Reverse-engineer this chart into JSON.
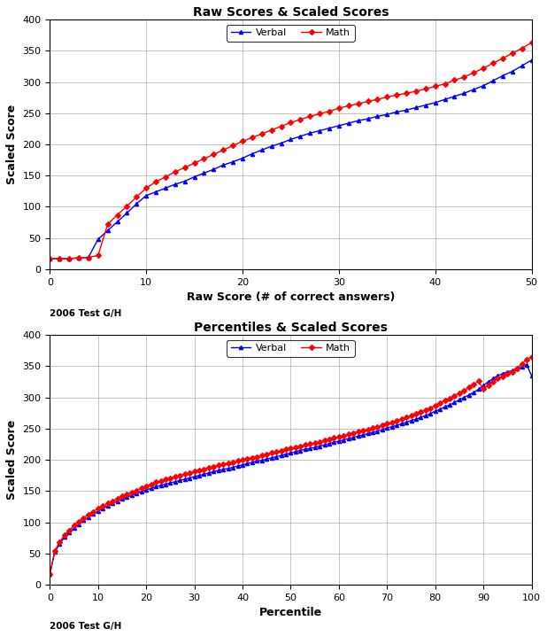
{
  "title1": "Raw Scores & Scaled Scores",
  "title2": "Percentiles & Scaled Scores",
  "xlabel1": "Raw Score (# of correct answers)",
  "xlabel2": "Percentile",
  "ylabel": "Scaled Score",
  "annotation": "2006 Test G/H",
  "verbal_color": "#0000FF",
  "math_color": "#FF0000",
  "verbal_label": "Verbal",
  "math_label": "Math",
  "raw_verbal_x": [
    0,
    1,
    2,
    3,
    4,
    5,
    6,
    7,
    8,
    9,
    10,
    11,
    12,
    13,
    14,
    15,
    16,
    17,
    18,
    19,
    20,
    21,
    22,
    23,
    24,
    25,
    26,
    27,
    28,
    29,
    30,
    31,
    32,
    33,
    34,
    35,
    36,
    37,
    38,
    39,
    40,
    41,
    42,
    43,
    44,
    45,
    46,
    47,
    48,
    49,
    50
  ],
  "raw_verbal_y": [
    17,
    17,
    17,
    18,
    19,
    48,
    62,
    76,
    90,
    105,
    118,
    124,
    130,
    136,
    141,
    148,
    154,
    160,
    167,
    172,
    178,
    185,
    191,
    197,
    202,
    208,
    213,
    218,
    222,
    226,
    230,
    234,
    238,
    241,
    245,
    248,
    252,
    255,
    259,
    263,
    267,
    272,
    277,
    282,
    288,
    294,
    302,
    310,
    317,
    326,
    335
  ],
  "raw_math_x": [
    0,
    1,
    2,
    3,
    4,
    5,
    6,
    7,
    8,
    9,
    10,
    11,
    12,
    13,
    14,
    15,
    16,
    17,
    18,
    19,
    20,
    21,
    22,
    23,
    24,
    25,
    26,
    27,
    28,
    29,
    30,
    31,
    32,
    33,
    34,
    35,
    36,
    37,
    38,
    39,
    40,
    41,
    42,
    43,
    44,
    45,
    46,
    47,
    48,
    49,
    50
  ],
  "raw_math_y": [
    17,
    17,
    17,
    18,
    19,
    22,
    72,
    87,
    101,
    116,
    130,
    140,
    148,
    156,
    163,
    170,
    177,
    184,
    191,
    198,
    205,
    211,
    217,
    223,
    229,
    235,
    240,
    245,
    249,
    253,
    258,
    262,
    265,
    269,
    272,
    276,
    279,
    282,
    285,
    289,
    293,
    297,
    303,
    308,
    315,
    322,
    330,
    338,
    346,
    354,
    363
  ],
  "pct_verbal_x": [
    0,
    1,
    2,
    3,
    4,
    5,
    6,
    7,
    8,
    9,
    10,
    11,
    12,
    13,
    14,
    15,
    16,
    17,
    18,
    19,
    20,
    21,
    22,
    23,
    24,
    25,
    26,
    27,
    28,
    29,
    30,
    31,
    32,
    33,
    34,
    35,
    36,
    37,
    38,
    39,
    40,
    41,
    42,
    43,
    44,
    45,
    46,
    47,
    48,
    49,
    50,
    51,
    52,
    53,
    54,
    55,
    56,
    57,
    58,
    59,
    60,
    61,
    62,
    63,
    64,
    65,
    66,
    67,
    68,
    69,
    70,
    71,
    72,
    73,
    74,
    75,
    76,
    77,
    78,
    79,
    80,
    81,
    82,
    83,
    84,
    85,
    86,
    87,
    88,
    89,
    90,
    91,
    92,
    93,
    94,
    95,
    96,
    97,
    98,
    99,
    100
  ],
  "pct_verbal_y": [
    17,
    52,
    65,
    76,
    84,
    91,
    97,
    103,
    108,
    113,
    118,
    122,
    126,
    130,
    134,
    137,
    140,
    143,
    146,
    149,
    152,
    154,
    157,
    159,
    161,
    163,
    165,
    167,
    169,
    171,
    173,
    175,
    177,
    179,
    181,
    183,
    185,
    186,
    188,
    190,
    192,
    194,
    196,
    198,
    199,
    201,
    203,
    205,
    207,
    209,
    211,
    213,
    215,
    217,
    218,
    220,
    222,
    224,
    226,
    228,
    230,
    232,
    234,
    236,
    238,
    240,
    242,
    244,
    246,
    248,
    251,
    253,
    255,
    258,
    260,
    263,
    265,
    268,
    271,
    274,
    278,
    281,
    285,
    288,
    292,
    296,
    300,
    304,
    308,
    313,
    319,
    325,
    330,
    335,
    338,
    341,
    343,
    346,
    349,
    352,
    335
  ],
  "pct_math_x": [
    0,
    1,
    2,
    3,
    4,
    5,
    6,
    7,
    8,
    9,
    10,
    11,
    12,
    13,
    14,
    15,
    16,
    17,
    18,
    19,
    20,
    21,
    22,
    23,
    24,
    25,
    26,
    27,
    28,
    29,
    30,
    31,
    32,
    33,
    34,
    35,
    36,
    37,
    38,
    39,
    40,
    41,
    42,
    43,
    44,
    45,
    46,
    47,
    48,
    49,
    50,
    51,
    52,
    53,
    54,
    55,
    56,
    57,
    58,
    59,
    60,
    61,
    62,
    63,
    64,
    65,
    66,
    67,
    68,
    69,
    70,
    71,
    72,
    73,
    74,
    75,
    76,
    77,
    78,
    79,
    80,
    81,
    82,
    83,
    84,
    85,
    86,
    87,
    88,
    89,
    90,
    91,
    92,
    93,
    94,
    95,
    96,
    97,
    98,
    99,
    100
  ],
  "pct_math_y": [
    17,
    54,
    68,
    79,
    87,
    95,
    101,
    107,
    112,
    117,
    122,
    126,
    130,
    134,
    138,
    142,
    145,
    148,
    151,
    155,
    158,
    161,
    164,
    166,
    169,
    171,
    173,
    175,
    177,
    179,
    181,
    183,
    185,
    187,
    189,
    191,
    193,
    195,
    196,
    198,
    200,
    202,
    203,
    205,
    207,
    209,
    211,
    213,
    215,
    217,
    218,
    220,
    222,
    224,
    225,
    227,
    229,
    231,
    233,
    235,
    237,
    239,
    241,
    243,
    245,
    247,
    249,
    251,
    253,
    255,
    258,
    260,
    263,
    265,
    268,
    271,
    274,
    277,
    280,
    283,
    287,
    291,
    295,
    298,
    303,
    307,
    311,
    316,
    321,
    326,
    313,
    319,
    325,
    330,
    334,
    338,
    341,
    347,
    354,
    361,
    365
  ]
}
